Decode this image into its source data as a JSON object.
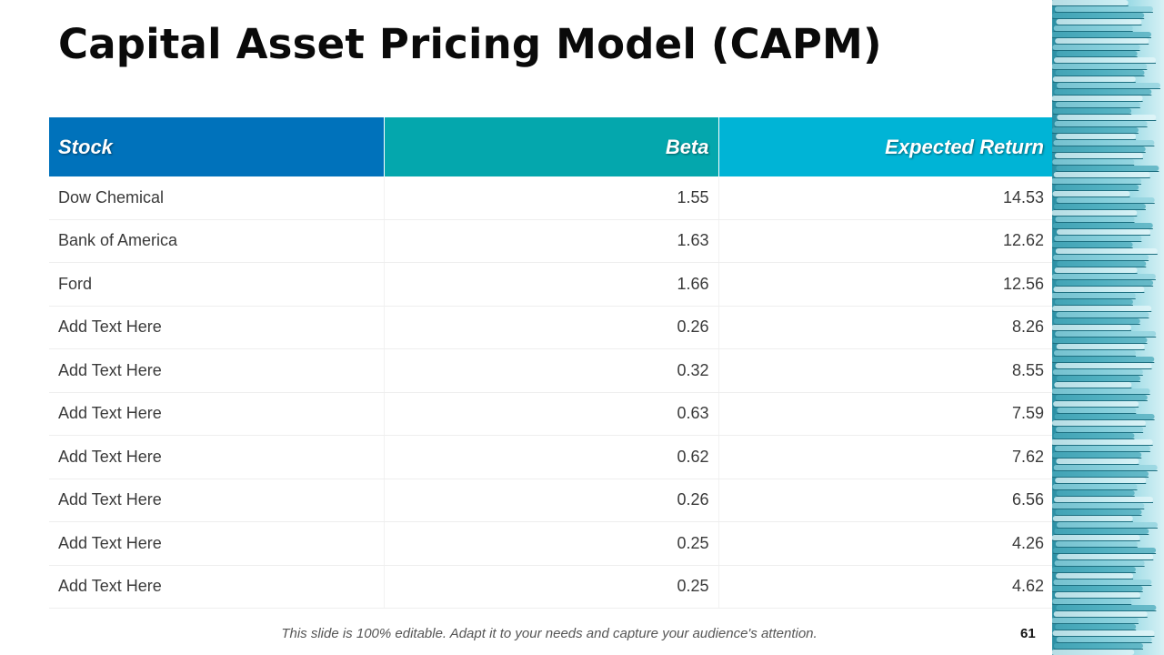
{
  "slide": {
    "title": "Capital Asset Pricing Model (CAPM)",
    "footer_note": "This slide is 100% editable. Adapt it to your needs and capture your audience's attention.",
    "page_number": "61"
  },
  "colors": {
    "header_stock": "#0072bb",
    "header_beta": "#04a7ad",
    "header_return": "#00b4d6"
  },
  "table": {
    "headers": [
      "Stock",
      "Beta",
      "Expected Return"
    ],
    "rows": [
      [
        "Dow Chemical",
        "1.55",
        "14.53"
      ],
      [
        "Bank of America",
        "1.63",
        "12.62"
      ],
      [
        "Ford",
        "1.66",
        "12.56"
      ],
      [
        "Add Text Here",
        "0.26",
        "8.26"
      ],
      [
        "Add Text Here",
        "0.32",
        "8.55"
      ],
      [
        "Add Text Here",
        "0.63",
        "7.59"
      ],
      [
        "Add Text Here",
        "0.62",
        "7.62"
      ],
      [
        "Add Text Here",
        "0.26",
        "6.56"
      ],
      [
        "Add Text Here",
        "0.25",
        "4.26"
      ],
      [
        "Add Text Here",
        "0.25",
        "4.62"
      ]
    ]
  }
}
